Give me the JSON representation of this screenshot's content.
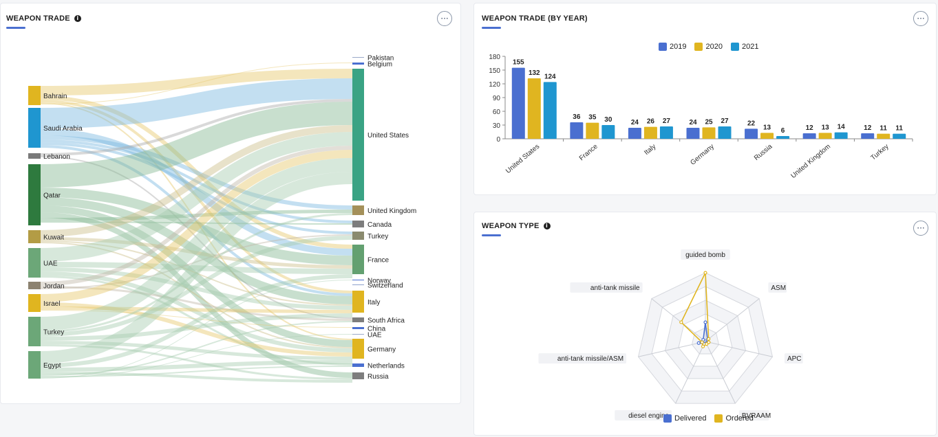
{
  "sankey": {
    "title": "WEAPON TRADE",
    "info_icon": "info-icon",
    "more_icon": "more-icon",
    "sources": [
      {
        "name": "Bahrain",
        "color": "#e0b520"
      },
      {
        "name": "Saudi Arabia",
        "color": "#1f96d0"
      },
      {
        "name": "Lebanon",
        "color": "#7a7a7a"
      },
      {
        "name": "Qatar",
        "color": "#2e7a3e"
      },
      {
        "name": "Kuwait",
        "color": "#b39c45"
      },
      {
        "name": "UAE",
        "color": "#6ca778"
      },
      {
        "name": "Jordan",
        "color": "#8c8270"
      },
      {
        "name": "Israel",
        "color": "#e0b520"
      },
      {
        "name": "Turkey",
        "color": "#6ca778"
      },
      {
        "name": "Egypt",
        "color": "#6ca778"
      }
    ],
    "targets": [
      {
        "name": "Pakistan",
        "color": "#9aa9c8"
      },
      {
        "name": "Belgium",
        "color": "#4a6fd0"
      },
      {
        "name": "United States",
        "color": "#3aa384"
      },
      {
        "name": "United Kingdom",
        "color": "#a4905a"
      },
      {
        "name": "Canada",
        "color": "#7d7d7d"
      },
      {
        "name": "Turkey",
        "color": "#8a8a6e"
      },
      {
        "name": "France",
        "color": "#63a070"
      },
      {
        "name": "Norway",
        "color": "#4a6fd0"
      },
      {
        "name": "Switzerland",
        "color": "#8da0cc"
      },
      {
        "name": "Italy",
        "color": "#e0b520"
      },
      {
        "name": "South Africa",
        "color": "#7d7d7d"
      },
      {
        "name": "China",
        "color": "#4a6fd0"
      },
      {
        "name": "UAE",
        "color": "#9aa9c8"
      },
      {
        "name": "Germany",
        "color": "#e0b520"
      },
      {
        "name": "Netherlands",
        "color": "#4a6fd0"
      },
      {
        "name": "Russia",
        "color": "#7d7d7d"
      }
    ]
  },
  "bar": {
    "title": "WEAPON TRADE (BY YEAR)",
    "more_icon": "more-icon"
  },
  "chart_data": [
    {
      "type": "bar",
      "title": "WEAPON TRADE (BY YEAR)",
      "categories": [
        "United States",
        "France",
        "Italy",
        "Germany",
        "Russia",
        "United Kingdom",
        "Turkey"
      ],
      "series": [
        {
          "name": "2019",
          "color": "#4a6fd0",
          "values": [
            155,
            36,
            24,
            24,
            22,
            12,
            12
          ]
        },
        {
          "name": "2020",
          "color": "#e0b520",
          "values": [
            132,
            35,
            26,
            25,
            13,
            13,
            11
          ]
        },
        {
          "name": "2021",
          "color": "#1f96d0",
          "values": [
            124,
            30,
            27,
            27,
            6,
            14,
            11
          ]
        }
      ],
      "yticks": [
        0,
        30,
        60,
        90,
        120,
        150,
        180
      ],
      "ylim": [
        0,
        180
      ],
      "legend": "top",
      "grid": false
    },
    {
      "type": "radar",
      "title": "WEAPON TYPE",
      "axes": [
        "guided bomb",
        "ASM",
        "APC",
        "BVRAAM",
        "diesel engine",
        "anti-tank missile/ASM",
        "anti-tank missile"
      ],
      "series": [
        {
          "name": "Delivered",
          "color": "#4a6fd0",
          "values": [
            0.28,
            0.04,
            0.04,
            0.03,
            0.04,
            0.1,
            0.04
          ]
        },
        {
          "name": "Ordered",
          "color": "#e0b520",
          "values": [
            1.0,
            0.06,
            0.05,
            0.04,
            0.08,
            0.05,
            0.45
          ]
        }
      ],
      "legend": "bottom",
      "grid": true
    }
  ],
  "radar": {
    "title": "WEAPON TYPE",
    "info_icon": "info-icon",
    "more_icon": "more-icon"
  }
}
